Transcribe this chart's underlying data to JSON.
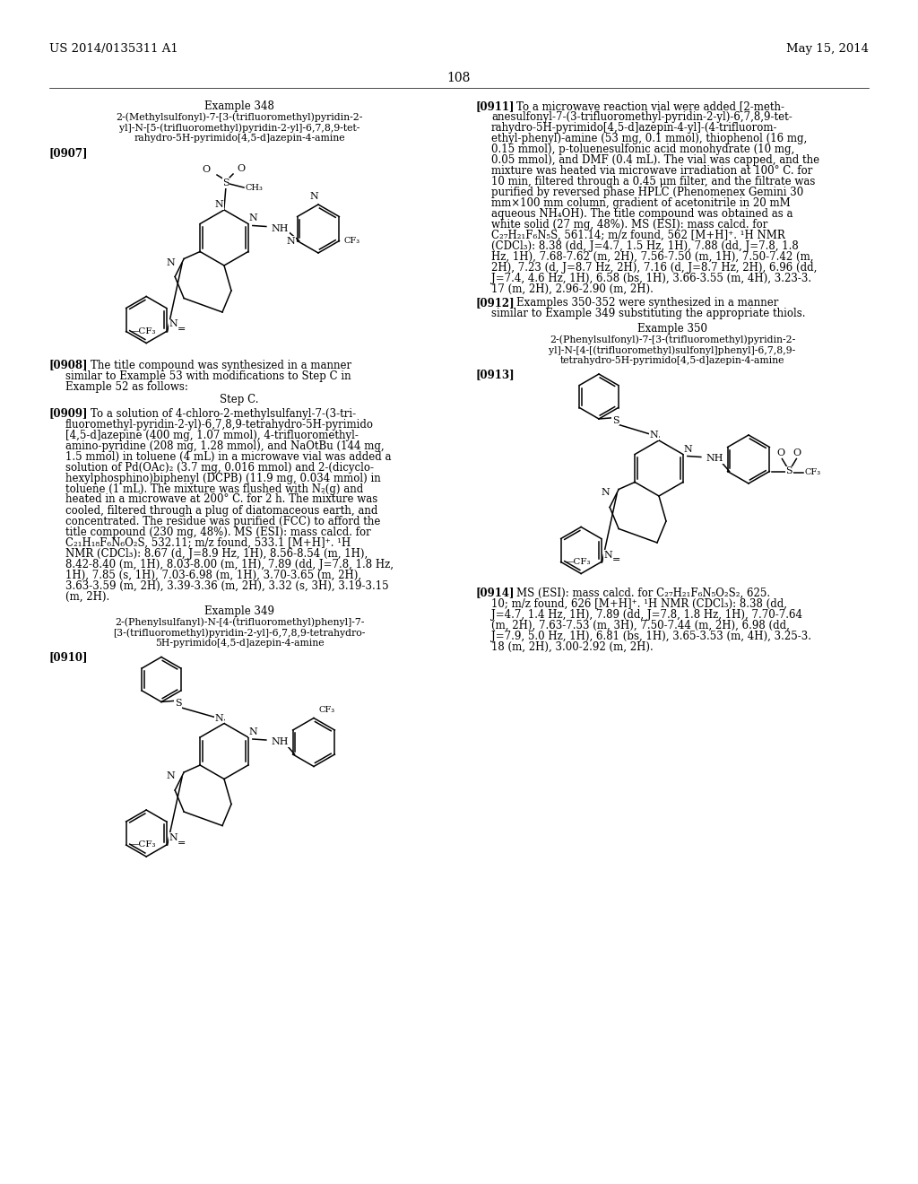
{
  "bg": "#ffffff",
  "header_left": "US 2014/0135311 A1",
  "header_right": "May 15, 2014",
  "page_number": "108",
  "fs_body": 8.5,
  "fs_small": 7.8,
  "fs_label": 8.5
}
